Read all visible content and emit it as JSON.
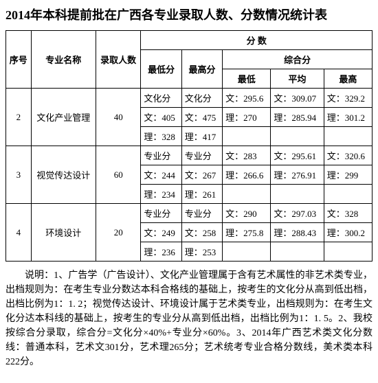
{
  "title": "2014年本科提前批在广西各专业录取人数、分数情况统计表",
  "header": {
    "seq": "序号",
    "major": "专业名称",
    "count": "录取人数",
    "scores": "分 数",
    "min": "最低分",
    "max": "最高分",
    "composite": "综合分",
    "comp_min": "最低",
    "comp_avg": "平均",
    "comp_max": "最高"
  },
  "rows": [
    {
      "seq": "2",
      "major": "文化产业管理",
      "count": "40",
      "r1_min": "文化分",
      "r1_max": "文化分",
      "r1_cmin": "文：295.6",
      "r1_cavg": "文：309.07",
      "r1_cmax": "文：329.2",
      "r2_min": "文：405",
      "r2_max": "文：475",
      "r2_cmin": "理：270",
      "r2_cavg": "理：285.94",
      "r2_cmax": "理：301.2",
      "r3_min": "理：328",
      "r3_max": "理：417",
      "r3_cmin": "",
      "r3_cavg": "",
      "r3_cmax": ""
    },
    {
      "seq": "3",
      "major": "视觉传达设计",
      "count": "60",
      "r1_min": "专业分",
      "r1_max": "专业分",
      "r1_cmin": "文：283",
      "r1_cavg": "文：295.61",
      "r1_cmax": "文：320.6",
      "r2_min": "文：244",
      "r2_max": "文：267",
      "r2_cmin": "理：266.6",
      "r2_cavg": "理：276.91",
      "r2_cmax": "理：299",
      "r3_min": "理：234",
      "r3_max": "理：261",
      "r3_cmin": "",
      "r3_cavg": "",
      "r3_cmax": ""
    },
    {
      "seq": "4",
      "major": "环境设计",
      "count": "20",
      "r1_min": "专业分",
      "r1_max": "专业分",
      "r1_cmin": "文：290",
      "r1_cavg": "文：297.03",
      "r1_cmax": "文：328",
      "r2_min": "文：249",
      "r2_max": "文：258",
      "r2_cmin": "理：275.8",
      "r2_cavg": "理：288.43",
      "r2_cmax": "理：300.2",
      "r3_min": "理：236",
      "r3_max": "理：253",
      "r3_cmin": "",
      "r3_cavg": "",
      "r3_cmax": ""
    }
  ],
  "notes": "说明：1、广告学（广告设计）、文化产业管理属于含有艺术属性的非艺术类专业，出档规则为：在考生专业分数达本科合格线的基础上，按考生的文化分从高到低出档，出档比例为1：1. 2；视觉传达设计、环境设计属于艺术类专业，出档规则为：在考生文化分达本科线的基础上，按考生的专业分从高到低出档，出档比例为1：1. 5。2、我校按综合分录取，综合分=文化分×40%+专业分×60%。3、2014年广西艺术类文化分数线：普通本科，艺术文301分，艺术理265分；艺术统考专业合格分数线，美术类本科222分。"
}
